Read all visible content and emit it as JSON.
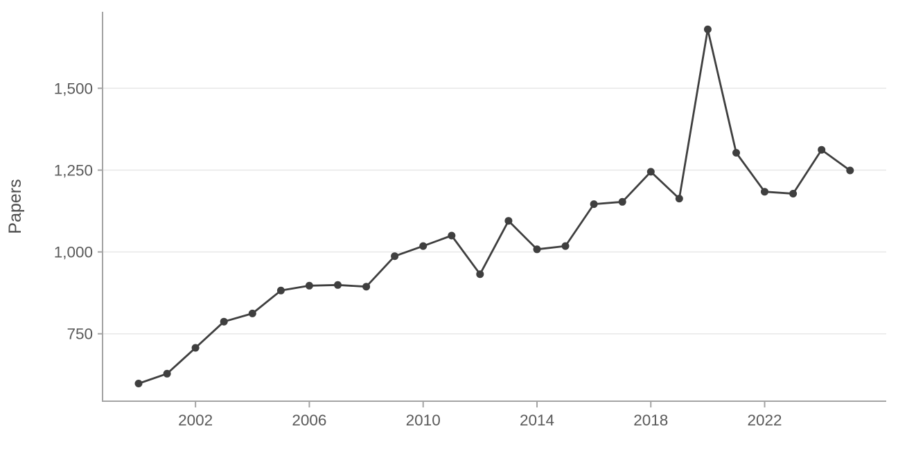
{
  "chart_data": {
    "type": "line",
    "title": "",
    "xlabel": "",
    "ylabel": "Papers",
    "series_name": "Papers",
    "x": [
      2000,
      2001,
      2002,
      2003,
      2004,
      2005,
      2006,
      2007,
      2008,
      2009,
      2010,
      2011,
      2012,
      2013,
      2014,
      2015,
      2016,
      2017,
      2018,
      2019,
      2020,
      2021,
      2022,
      2023,
      2024,
      2025
    ],
    "values": [
      598,
      628,
      707,
      787,
      812,
      882,
      897,
      899,
      894,
      987,
      1018,
      1050,
      932,
      1095,
      1008,
      1018,
      1146,
      1153,
      1245,
      1163,
      1680,
      1303,
      1184,
      1178,
      1312,
      1249
    ],
    "x_tick_values": [
      2002,
      2006,
      2010,
      2014,
      2018,
      2022
    ],
    "x_tick_labels": [
      "2002",
      "2006",
      "2010",
      "2014",
      "2018",
      "2022"
    ],
    "y_tick_values": [
      750,
      1000,
      1250,
      1500
    ],
    "y_tick_labels": [
      "750",
      "1,000",
      "1,250",
      "1,500"
    ],
    "xlim": [
      1998.7,
      2026.3
    ],
    "ylim": [
      540,
      1735
    ],
    "grid": "horizontal-only",
    "legend": "none",
    "marker": "filled-circle",
    "colors": {
      "line": "#3f3f3f",
      "marker": "#3f3f3f",
      "grid": "#e7e7e7",
      "axis": "#a3a3a3",
      "tick_label": "#595959",
      "axis_label": "#4d4d4d",
      "background": "#ffffff"
    }
  }
}
